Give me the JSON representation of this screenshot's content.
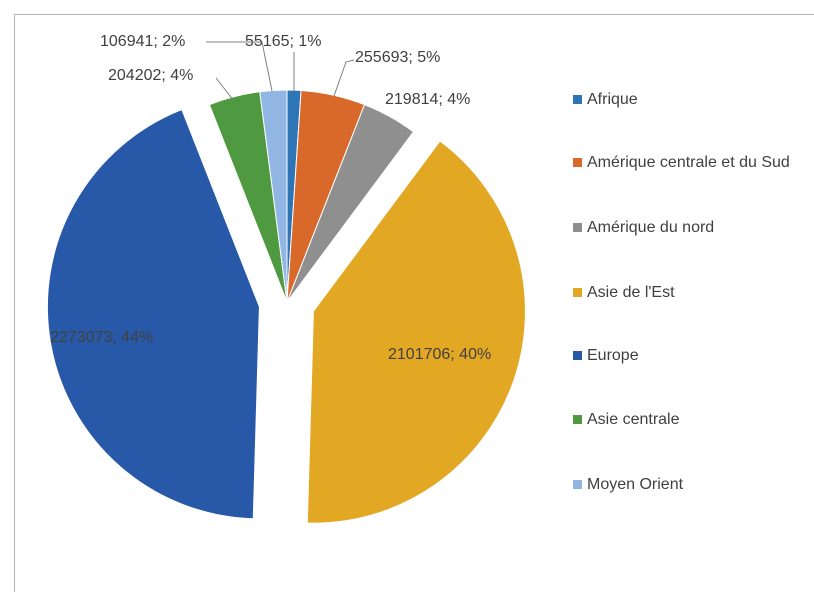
{
  "chart_data": {
    "type": "pie",
    "categories": [
      "Afrique",
      "Amérique centrale et du Sud",
      "Amérique du nord",
      "Asie de l'Est",
      "Europe",
      "Asie centrale",
      "Moyen Orient"
    ],
    "values": [
      55165,
      255693,
      219814,
      2101706,
      2273073,
      204202,
      106941
    ],
    "value_labels": [
      "55165; 1%",
      "255693; 5%",
      "219814; 4%",
      "2101706; 40%",
      "2273073; 44%",
      "204202; 4%",
      "106941; 2%"
    ],
    "colors": [
      "#2e75b6",
      "#d9692a",
      "#8f8f8f",
      "#e3a823",
      "#2759a8",
      "#4f9a40",
      "#92b6e4"
    ],
    "exploded": [
      false,
      false,
      false,
      true,
      true,
      false,
      false
    ],
    "legend": "right"
  }
}
